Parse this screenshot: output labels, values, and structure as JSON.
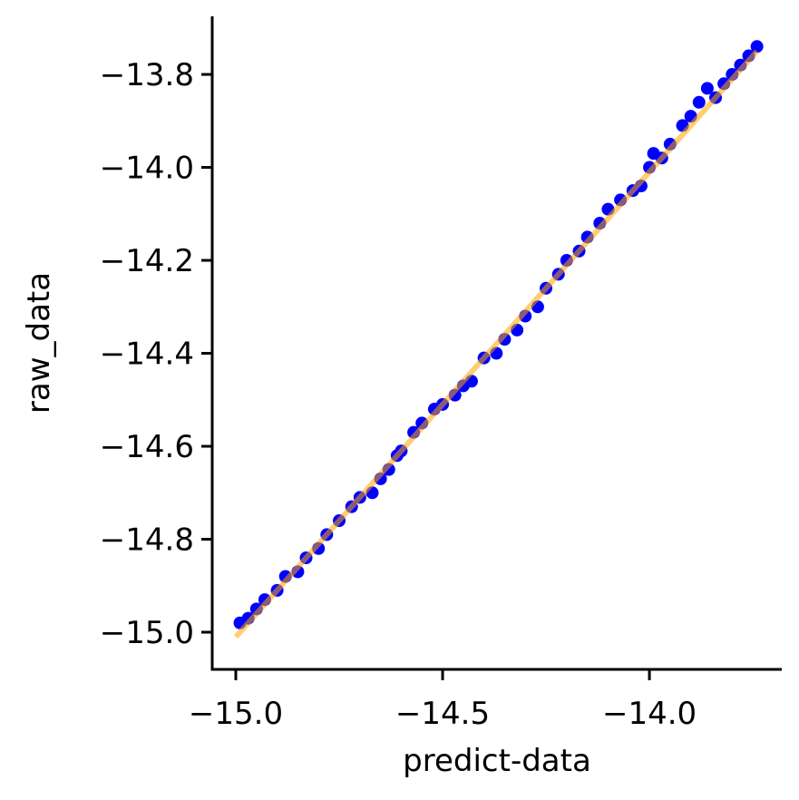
{
  "chart_data": {
    "type": "scatter",
    "x_label": "predict-data",
    "y_label": "raw_data",
    "xlim": [
      -15.057,
      -13.68
    ],
    "ylim": [
      -15.08,
      -13.675
    ],
    "xticks": [
      {
        "value": -15.0,
        "label": "−15.0"
      },
      {
        "value": -14.5,
        "label": "−14.5"
      },
      {
        "value": -14.0,
        "label": "−14.0"
      }
    ],
    "yticks": [
      {
        "value": -15.0,
        "label": "−15.0"
      },
      {
        "value": -14.8,
        "label": "−14.8"
      },
      {
        "value": -14.6,
        "label": "−14.6"
      },
      {
        "value": -14.4,
        "label": "−14.4"
      },
      {
        "value": -14.2,
        "label": "−14.2"
      },
      {
        "value": -14.0,
        "label": "−14.0"
      },
      {
        "value": -13.8,
        "label": "−13.8"
      }
    ],
    "series": [
      {
        "type": "scatter",
        "color": "#0000ff",
        "x": [
          -14.99,
          -14.97,
          -14.95,
          -14.93,
          -14.9,
          -14.88,
          -14.85,
          -14.83,
          -14.8,
          -14.78,
          -14.75,
          -14.72,
          -14.7,
          -14.67,
          -14.65,
          -14.63,
          -14.61,
          -14.6,
          -14.57,
          -14.55,
          -14.52,
          -14.5,
          -14.47,
          -14.45,
          -14.43,
          -14.4,
          -14.37,
          -14.35,
          -14.32,
          -14.3,
          -14.27,
          -14.25,
          -14.22,
          -14.2,
          -14.17,
          -14.15,
          -14.12,
          -14.1,
          -14.07,
          -14.04,
          -14.02,
          -14.0,
          -13.99,
          -13.97,
          -13.95,
          -13.92,
          -13.9,
          -13.88,
          -13.86,
          -13.84,
          -13.82,
          -13.8,
          -13.78,
          -13.76,
          -13.74
        ],
        "values": [
          -14.98,
          -14.97,
          -14.95,
          -14.93,
          -14.91,
          -14.88,
          -14.87,
          -14.84,
          -14.82,
          -14.79,
          -14.76,
          -14.73,
          -14.71,
          -14.7,
          -14.67,
          -14.65,
          -14.62,
          -14.61,
          -14.57,
          -14.55,
          -14.52,
          -14.51,
          -14.49,
          -14.47,
          -14.46,
          -14.41,
          -14.4,
          -14.37,
          -14.35,
          -14.32,
          -14.3,
          -14.26,
          -14.23,
          -14.2,
          -14.18,
          -14.15,
          -14.12,
          -14.09,
          -14.07,
          -14.05,
          -14.04,
          -14.0,
          -13.97,
          -13.98,
          -13.95,
          -13.91,
          -13.89,
          -13.86,
          -13.83,
          -13.85,
          -13.82,
          -13.8,
          -13.78,
          -13.76,
          -13.74
        ]
      },
      {
        "type": "line",
        "color": "#ffa500",
        "x": [
          -15.0,
          -13.74
        ],
        "values": [
          -15.01,
          -13.75
        ]
      }
    ]
  }
}
